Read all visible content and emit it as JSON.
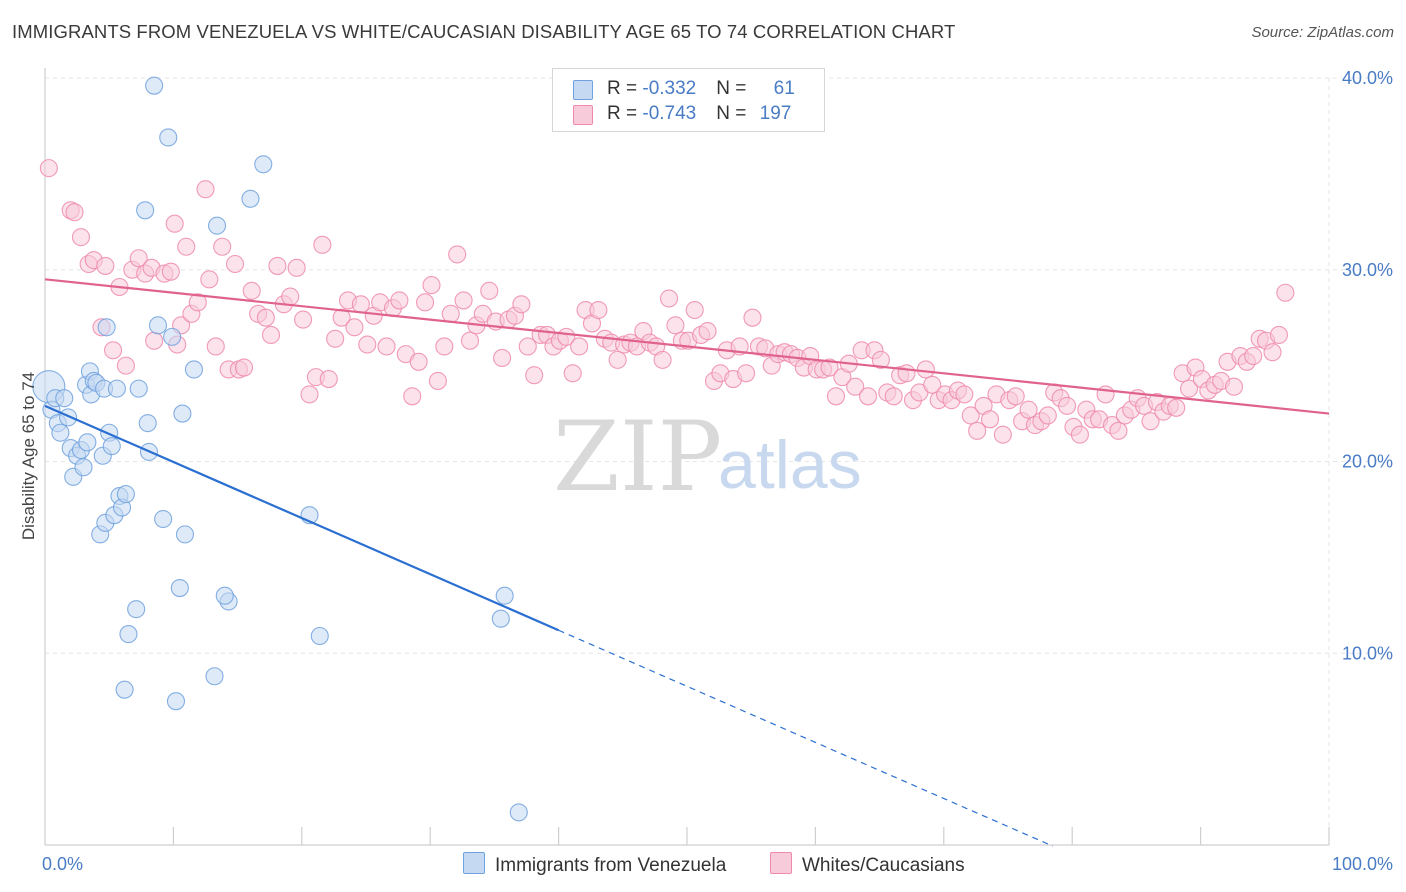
{
  "title": "IMMIGRANTS FROM VENEZUELA VS WHITE/CAUCASIAN DISABILITY AGE 65 TO 74 CORRELATION CHART",
  "source": "Source: ZipAtlas.com",
  "watermark": {
    "zip": "ZIP",
    "atlas": "atlas"
  },
  "colors": {
    "blue": "#6fa1de",
    "blue_fill": "#c5d9f3",
    "blue_line": "#2a6fd1",
    "pink": "#ee8aab",
    "pink_fill": "#f8cbdb",
    "pink_line": "#e0628e",
    "tick_text": "#4a7cc5",
    "grid": "#e6e6e6"
  },
  "legend": {
    "rows": [
      {
        "r_label": "R = ",
        "r_value": "-0.332",
        "n_label": "N = ",
        "n_value": "61",
        "color": "blue"
      },
      {
        "r_label": "R = ",
        "r_value": "-0.743",
        "n_label": "N = ",
        "n_value": "197",
        "color": "pink"
      }
    ]
  },
  "bottom_legend": [
    {
      "label": "Immigrants from Venezuela",
      "color": "blue"
    },
    {
      "label": "Whites/Caucasians",
      "color": "pink"
    }
  ],
  "chart_data": {
    "type": "scatter",
    "xlabel": "",
    "ylabel": "Disability Age 65 to 74",
    "xlim": [
      0,
      100
    ],
    "ylim": [
      0,
      40
    ],
    "x_tick_labels": [
      {
        "value": 0,
        "label": "0.0%"
      },
      {
        "value": 100,
        "label": "100.0%"
      }
    ],
    "y_tick_labels": [
      {
        "value": 10,
        "label": "10.0%"
      },
      {
        "value": 20,
        "label": "20.0%"
      },
      {
        "value": 30,
        "label": "30.0%"
      },
      {
        "value": 40,
        "label": "40.0%"
      }
    ],
    "grid": true,
    "legend_placement": "top-center",
    "series": [
      {
        "name": "Immigrants from Venezuela",
        "color": "blue",
        "trend": {
          "x0": 0,
          "y0": 22.9,
          "x1": 40,
          "y1": 11.2,
          "dashed_to_x": 78.5
        },
        "points": [
          [
            0.3,
            23.9
          ],
          [
            0.5,
            22.7
          ],
          [
            0.8,
            23.3
          ],
          [
            1.0,
            22.0
          ],
          [
            1.2,
            21.5
          ],
          [
            1.5,
            23.3
          ],
          [
            1.8,
            22.3
          ],
          [
            2.0,
            20.7
          ],
          [
            2.2,
            19.2
          ],
          [
            2.5,
            20.3
          ],
          [
            2.8,
            20.6
          ],
          [
            3.0,
            19.7
          ],
          [
            3.2,
            24.0
          ],
          [
            3.3,
            21.0
          ],
          [
            3.5,
            24.7
          ],
          [
            3.6,
            23.5
          ],
          [
            3.8,
            24.2
          ],
          [
            4.0,
            24.1
          ],
          [
            4.3,
            16.2
          ],
          [
            4.5,
            20.3
          ],
          [
            4.6,
            23.8
          ],
          [
            4.7,
            16.8
          ],
          [
            4.8,
            27.0
          ],
          [
            5.0,
            21.5
          ],
          [
            5.2,
            20.8
          ],
          [
            5.4,
            17.2
          ],
          [
            5.6,
            23.8
          ],
          [
            5.8,
            18.2
          ],
          [
            6.0,
            17.6
          ],
          [
            6.2,
            8.1
          ],
          [
            6.3,
            18.3
          ],
          [
            6.5,
            11.0
          ],
          [
            7.1,
            12.3
          ],
          [
            7.3,
            23.8
          ],
          [
            7.8,
            33.1
          ],
          [
            8.0,
            22.0
          ],
          [
            8.1,
            20.5
          ],
          [
            8.5,
            39.6
          ],
          [
            8.8,
            27.1
          ],
          [
            9.2,
            17.0
          ],
          [
            9.6,
            36.9
          ],
          [
            9.9,
            26.5
          ],
          [
            10.2,
            7.5
          ],
          [
            10.5,
            13.4
          ],
          [
            10.7,
            22.5
          ],
          [
            10.9,
            16.2
          ],
          [
            11.6,
            24.8
          ],
          [
            13.2,
            8.8
          ],
          [
            13.4,
            32.3
          ],
          [
            14.3,
            12.7
          ],
          [
            14.0,
            13.0
          ],
          [
            16.0,
            33.7
          ],
          [
            17.0,
            35.5
          ],
          [
            20.6,
            17.2
          ],
          [
            21.4,
            10.9
          ],
          [
            35.5,
            11.8
          ],
          [
            35.8,
            13.0
          ],
          [
            36.9,
            1.7
          ]
        ]
      },
      {
        "name": "Whites/Caucasians",
        "color": "pink",
        "trend": {
          "x0": 0,
          "y0": 29.5,
          "x1": 100,
          "y1": 22.5
        },
        "points": [
          [
            0.3,
            35.3
          ],
          [
            2.0,
            33.1
          ],
          [
            2.3,
            33.0
          ],
          [
            2.8,
            31.7
          ],
          [
            3.4,
            30.3
          ],
          [
            3.8,
            30.5
          ],
          [
            4.4,
            27.0
          ],
          [
            4.7,
            30.2
          ],
          [
            5.3,
            25.8
          ],
          [
            5.8,
            29.1
          ],
          [
            6.3,
            25.0
          ],
          [
            6.8,
            30.0
          ],
          [
            7.3,
            30.6
          ],
          [
            7.8,
            29.8
          ],
          [
            8.3,
            30.1
          ],
          [
            8.5,
            26.3
          ],
          [
            9.3,
            29.8
          ],
          [
            9.8,
            29.9
          ],
          [
            10.1,
            32.4
          ],
          [
            10.3,
            26.1
          ],
          [
            10.6,
            27.1
          ],
          [
            11.0,
            31.2
          ],
          [
            11.4,
            27.7
          ],
          [
            11.9,
            28.3
          ],
          [
            12.5,
            34.2
          ],
          [
            12.8,
            29.5
          ],
          [
            13.3,
            26.0
          ],
          [
            13.8,
            31.2
          ],
          [
            14.3,
            24.8
          ],
          [
            14.8,
            30.3
          ],
          [
            15.1,
            24.8
          ],
          [
            15.5,
            24.9
          ],
          [
            16.1,
            28.9
          ],
          [
            16.6,
            27.7
          ],
          [
            17.2,
            27.5
          ],
          [
            17.6,
            26.6
          ],
          [
            18.1,
            30.2
          ],
          [
            18.6,
            28.2
          ],
          [
            19.1,
            28.6
          ],
          [
            19.6,
            30.1
          ],
          [
            20.1,
            27.4
          ],
          [
            20.6,
            23.5
          ],
          [
            21.1,
            24.4
          ],
          [
            21.6,
            31.3
          ],
          [
            22.1,
            24.3
          ],
          [
            22.6,
            26.4
          ],
          [
            23.1,
            27.5
          ],
          [
            23.6,
            28.4
          ],
          [
            24.1,
            27.0
          ],
          [
            24.6,
            28.2
          ],
          [
            25.1,
            26.1
          ],
          [
            25.6,
            27.6
          ],
          [
            26.1,
            28.3
          ],
          [
            26.6,
            26.0
          ],
          [
            27.1,
            28.0
          ],
          [
            27.6,
            28.4
          ],
          [
            28.1,
            25.6
          ],
          [
            28.6,
            23.4
          ],
          [
            29.1,
            25.2
          ],
          [
            29.6,
            28.3
          ],
          [
            30.1,
            29.2
          ],
          [
            30.6,
            24.2
          ],
          [
            31.1,
            26.0
          ],
          [
            31.6,
            27.7
          ],
          [
            32.1,
            30.8
          ],
          [
            32.6,
            28.4
          ],
          [
            33.1,
            26.3
          ],
          [
            33.6,
            27.1
          ],
          [
            34.1,
            27.7
          ],
          [
            34.6,
            28.9
          ],
          [
            35.1,
            27.3
          ],
          [
            35.6,
            25.4
          ],
          [
            36.1,
            27.4
          ],
          [
            36.6,
            27.6
          ],
          [
            37.1,
            28.2
          ],
          [
            37.6,
            26.0
          ],
          [
            38.1,
            24.5
          ],
          [
            38.6,
            26.6
          ],
          [
            39.1,
            26.6
          ],
          [
            39.6,
            26.0
          ],
          [
            40.1,
            26.3
          ],
          [
            40.6,
            26.5
          ],
          [
            41.1,
            24.6
          ],
          [
            41.6,
            26.0
          ],
          [
            42.1,
            27.9
          ],
          [
            42.6,
            27.2
          ],
          [
            43.1,
            27.9
          ],
          [
            43.6,
            26.4
          ],
          [
            44.1,
            26.2
          ],
          [
            44.6,
            25.3
          ],
          [
            45.1,
            26.1
          ],
          [
            45.6,
            26.2
          ],
          [
            46.1,
            26.0
          ],
          [
            46.6,
            26.8
          ],
          [
            47.1,
            26.2
          ],
          [
            47.6,
            26.0
          ],
          [
            48.1,
            25.3
          ],
          [
            48.6,
            28.5
          ],
          [
            49.1,
            27.1
          ],
          [
            49.6,
            26.3
          ],
          [
            50.1,
            26.3
          ],
          [
            50.6,
            27.9
          ],
          [
            51.1,
            26.6
          ],
          [
            51.6,
            26.8
          ],
          [
            52.1,
            24.2
          ],
          [
            52.6,
            24.6
          ],
          [
            53.1,
            25.8
          ],
          [
            53.6,
            24.3
          ],
          [
            54.1,
            26.0
          ],
          [
            54.6,
            24.6
          ],
          [
            55.1,
            27.5
          ],
          [
            55.6,
            26.0
          ],
          [
            56.1,
            25.9
          ],
          [
            56.6,
            25.0
          ],
          [
            57.1,
            25.6
          ],
          [
            57.6,
            25.7
          ],
          [
            58.1,
            25.6
          ],
          [
            58.6,
            25.4
          ],
          [
            59.1,
            24.9
          ],
          [
            59.6,
            25.5
          ],
          [
            60.1,
            24.8
          ],
          [
            60.6,
            24.8
          ],
          [
            61.1,
            24.9
          ],
          [
            61.6,
            23.4
          ],
          [
            62.1,
            24.4
          ],
          [
            62.6,
            25.1
          ],
          [
            63.1,
            23.9
          ],
          [
            63.6,
            25.8
          ],
          [
            64.1,
            23.4
          ],
          [
            64.6,
            25.8
          ],
          [
            65.1,
            25.3
          ],
          [
            65.6,
            23.6
          ],
          [
            66.1,
            23.4
          ],
          [
            66.6,
            24.5
          ],
          [
            67.1,
            24.6
          ],
          [
            67.6,
            23.2
          ],
          [
            68.1,
            23.6
          ],
          [
            68.6,
            24.8
          ],
          [
            69.1,
            24.0
          ],
          [
            69.6,
            23.2
          ],
          [
            70.1,
            23.5
          ],
          [
            70.6,
            23.2
          ],
          [
            71.1,
            23.7
          ],
          [
            71.6,
            23.5
          ],
          [
            72.1,
            22.4
          ],
          [
            72.6,
            21.6
          ],
          [
            73.1,
            22.9
          ],
          [
            73.6,
            22.2
          ],
          [
            74.1,
            23.5
          ],
          [
            74.6,
            21.4
          ],
          [
            75.1,
            23.2
          ],
          [
            75.6,
            23.4
          ],
          [
            76.1,
            22.1
          ],
          [
            76.6,
            22.7
          ],
          [
            77.1,
            21.9
          ],
          [
            77.6,
            22.1
          ],
          [
            78.1,
            22.4
          ],
          [
            78.6,
            23.6
          ],
          [
            79.1,
            23.3
          ],
          [
            79.6,
            22.9
          ],
          [
            80.1,
            21.8
          ],
          [
            80.6,
            21.4
          ],
          [
            81.1,
            22.7
          ],
          [
            81.6,
            22.2
          ],
          [
            82.1,
            22.2
          ],
          [
            82.6,
            23.5
          ],
          [
            83.1,
            21.9
          ],
          [
            83.6,
            21.6
          ],
          [
            84.1,
            22.4
          ],
          [
            84.6,
            22.7
          ],
          [
            85.1,
            23.3
          ],
          [
            85.6,
            22.9
          ],
          [
            86.1,
            22.1
          ],
          [
            86.6,
            23.1
          ],
          [
            87.1,
            22.6
          ],
          [
            87.6,
            22.9
          ],
          [
            88.1,
            22.8
          ],
          [
            88.6,
            24.6
          ],
          [
            89.1,
            23.8
          ],
          [
            89.6,
            24.9
          ],
          [
            90.1,
            24.3
          ],
          [
            90.6,
            23.7
          ],
          [
            91.1,
            24.0
          ],
          [
            91.6,
            24.2
          ],
          [
            92.1,
            25.2
          ],
          [
            92.6,
            23.9
          ],
          [
            93.1,
            25.5
          ],
          [
            93.6,
            25.2
          ],
          [
            94.1,
            25.5
          ],
          [
            94.6,
            26.4
          ],
          [
            95.1,
            26.3
          ],
          [
            95.6,
            25.7
          ],
          [
            96.1,
            26.6
          ],
          [
            96.6,
            28.8
          ]
        ]
      }
    ]
  }
}
